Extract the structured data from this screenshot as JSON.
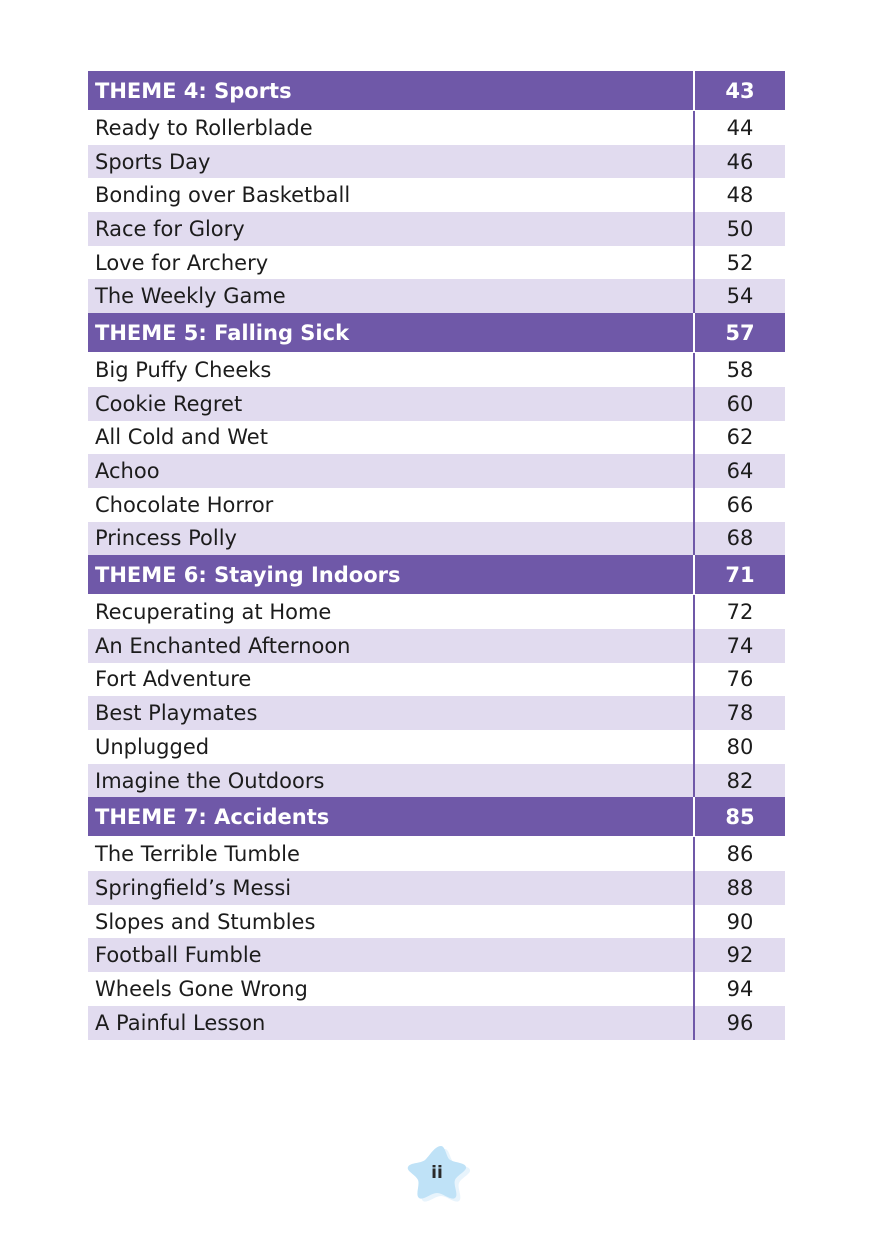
{
  "toc": {
    "themes": [
      {
        "title": "THEME 4: Sports",
        "page": "43",
        "stories": [
          {
            "title": "Ready to Rollerblade",
            "page": "44"
          },
          {
            "title": "Sports Day",
            "page": "46"
          },
          {
            "title": "Bonding over Basketball",
            "page": "48"
          },
          {
            "title": "Race for Glory",
            "page": "50"
          },
          {
            "title": "Love for Archery",
            "page": "52"
          },
          {
            "title": "The Weekly Game",
            "page": "54"
          }
        ]
      },
      {
        "title": "THEME 5: Falling Sick",
        "page": "57",
        "stories": [
          {
            "title": "Big Puffy Cheeks",
            "page": "58"
          },
          {
            "title": "Cookie Regret",
            "page": "60"
          },
          {
            "title": "All Cold and Wet",
            "page": "62"
          },
          {
            "title": "Achoo",
            "page": "64"
          },
          {
            "title": "Chocolate Horror",
            "page": "66"
          },
          {
            "title": "Princess Polly",
            "page": "68"
          }
        ]
      },
      {
        "title": "THEME 6: Staying Indoors",
        "page": "71",
        "stories": [
          {
            "title": "Recuperating at Home",
            "page": "72"
          },
          {
            "title": "An Enchanted Afternoon",
            "page": "74"
          },
          {
            "title": "Fort Adventure",
            "page": "76"
          },
          {
            "title": "Best Playmates",
            "page": "78"
          },
          {
            "title": "Unplugged",
            "page": "80"
          },
          {
            "title": "Imagine the Outdoors",
            "page": "82"
          }
        ]
      },
      {
        "title": "THEME 7: Accidents",
        "page": "85",
        "stories": [
          {
            "title": "The Terrible Tumble",
            "page": "86"
          },
          {
            "title": "Springfield’s Messi",
            "page": "88"
          },
          {
            "title": "Slopes and Stumbles",
            "page": "90"
          },
          {
            "title": "Football Fumble",
            "page": "92"
          },
          {
            "title": "Wheels Gone Wrong",
            "page": "94"
          },
          {
            "title": "A Painful Lesson",
            "page": "96"
          }
        ]
      }
    ]
  },
  "footer": {
    "page_number": "ii",
    "badge_icon": "star-badge-icon"
  },
  "colors": {
    "header_bg": "#6f58a8",
    "shaded_row": "#e1dbef",
    "badge_fill": "#bfe2f7"
  }
}
